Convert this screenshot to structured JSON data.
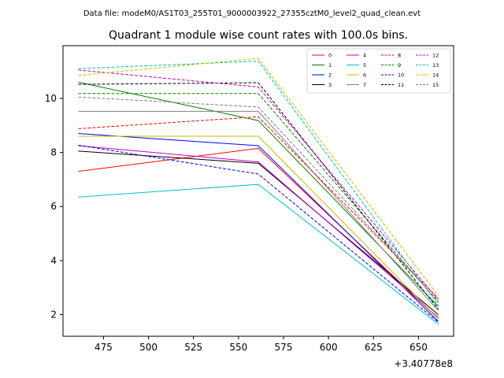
{
  "chart_data": {
    "type": "line",
    "suptitle": "Data file: modeM0/AS1T03_255T01_9000003922_27355cztM0_level2_quad_clean.evt",
    "title": "Quadrant 1 module wise count rates with 100.0s bins.",
    "xlabel": "",
    "ylabel": "",
    "x_offset_label": "+3.40778e8",
    "x": [
      461,
      561,
      661
    ],
    "xlim": [
      452.5,
      669.5
    ],
    "ylim": [
      1.2,
      11.95
    ],
    "xticks": [
      475,
      500,
      525,
      550,
      575,
      600,
      625,
      650
    ],
    "yticks": [
      2,
      4,
      6,
      8,
      10
    ],
    "grid": false,
    "legend_position": "top-right",
    "legend_columns": 4,
    "series": [
      {
        "name": "0",
        "color": "#ff0000",
        "dash": "solid",
        "values": [
          7.3,
          8.15,
          1.85
        ]
      },
      {
        "name": "1",
        "color": "#008000",
        "dash": "solid",
        "values": [
          10.6,
          9.18,
          2.3
        ]
      },
      {
        "name": "2",
        "color": "#0000ff",
        "dash": "solid",
        "values": [
          8.7,
          8.25,
          1.75
        ]
      },
      {
        "name": "3",
        "color": "#000000",
        "dash": "solid",
        "values": [
          8.05,
          7.6,
          2.0
        ]
      },
      {
        "name": "4",
        "color": "#bf00bf",
        "dash": "solid",
        "values": [
          8.25,
          7.65,
          1.9
        ]
      },
      {
        "name": "5",
        "color": "#00bfbf",
        "dash": "solid",
        "values": [
          6.35,
          6.82,
          1.65
        ]
      },
      {
        "name": "6",
        "color": "#bfbf00",
        "dash": "solid",
        "values": [
          8.6,
          8.6,
          1.85
        ]
      },
      {
        "name": "7",
        "color": "#808080",
        "dash": "solid",
        "values": [
          9.52,
          9.52,
          2.15
        ]
      },
      {
        "name": "8",
        "color": "#ff0000",
        "dash": "dashed",
        "values": [
          8.88,
          9.32,
          2.6
        ]
      },
      {
        "name": "9",
        "color": "#008000",
        "dash": "dashed",
        "values": [
          10.18,
          10.18,
          2.45
        ]
      },
      {
        "name": "10",
        "color": "#0000ff",
        "dash": "dashed",
        "values": [
          8.27,
          7.2,
          1.72
        ]
      },
      {
        "name": "11",
        "color": "#000000",
        "dash": "dashed",
        "values": [
          10.52,
          10.58,
          2.2
        ]
      },
      {
        "name": "12",
        "color": "#bf00bf",
        "dash": "dashed",
        "values": [
          11.05,
          10.42,
          2.55
        ]
      },
      {
        "name": "13",
        "color": "#00bfbf",
        "dash": "dashed",
        "values": [
          11.1,
          11.38,
          2.35
        ]
      },
      {
        "name": "14",
        "color": "#bfbf00",
        "dash": "dashed",
        "values": [
          10.85,
          11.48,
          2.7
        ]
      },
      {
        "name": "15",
        "color": "#808080",
        "dash": "dashed",
        "values": [
          10.05,
          9.68,
          2.5
        ]
      }
    ]
  }
}
